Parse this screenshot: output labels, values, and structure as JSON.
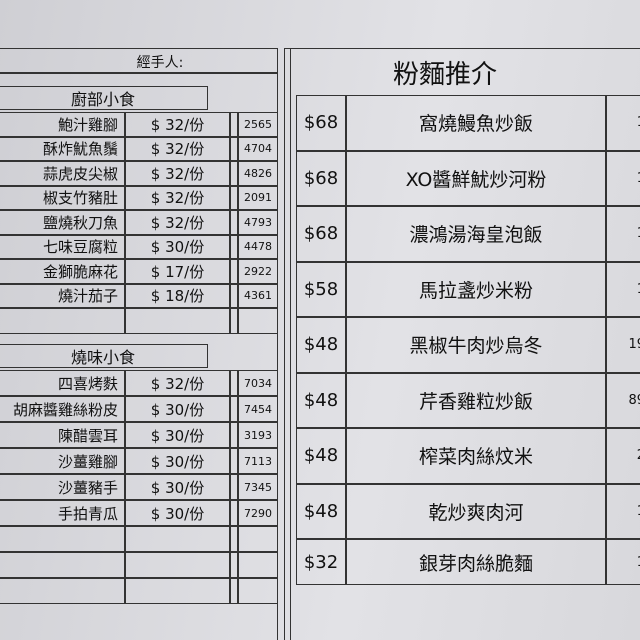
{
  "left": {
    "handler": "經手人:",
    "sections": [
      {
        "title": "廚部小食",
        "rows": [
          [
            "鮑汁雞腳",
            "$ 32/份",
            "2565"
          ],
          [
            "酥炸魷魚鬚",
            "$ 32/份",
            "4704"
          ],
          [
            "蒜虎皮尖椒",
            "$ 32/份",
            "4826"
          ],
          [
            "椒支竹豬肚",
            "$ 32/份",
            "2091"
          ],
          [
            "鹽燒秋刀魚",
            "$ 32/份",
            "4793"
          ],
          [
            "七味豆腐粒",
            "$ 30/份",
            "4478"
          ],
          [
            "金獅脆麻花",
            "$ 17/份",
            "2922"
          ],
          [
            "燒汁茄子",
            "$ 18/份",
            "4361"
          ]
        ]
      },
      {
        "title": "燒味小食",
        "rows": [
          [
            "四喜烤麩",
            "$ 32/份",
            "7034"
          ],
          [
            "胡麻醬雞絲粉皮",
            "$ 30/份",
            "7454"
          ],
          [
            "陳醋雲耳",
            "$ 30/份",
            "3193"
          ],
          [
            "沙薑雞腳",
            "$ 30/份",
            "7113"
          ],
          [
            "沙薑豬手",
            "$ 30/份",
            "7345"
          ],
          [
            "手拍青瓜",
            "$ 30/份",
            "7290"
          ]
        ]
      }
    ]
  },
  "right": {
    "title": "粉麵推介",
    "rows": [
      [
        "$68",
        "窩燒鰻魚炒飯",
        "1"
      ],
      [
        "$68",
        "XO醬鮮魷炒河粉",
        "1"
      ],
      [
        "$68",
        "濃鴻湯海皇泡飯",
        "1"
      ],
      [
        "$58",
        "馬拉盞炒米粉",
        "1"
      ],
      [
        "$48",
        "黑椒牛肉炒烏冬",
        "19"
      ],
      [
        "$48",
        "芹香雞粒炒飯",
        "89"
      ],
      [
        "$48",
        "榨菜肉絲炆米",
        "2"
      ],
      [
        "$48",
        "乾炒爽肉河",
        "1"
      ],
      [
        "$32",
        "銀芽肉絲脆麵",
        "1"
      ]
    ]
  }
}
